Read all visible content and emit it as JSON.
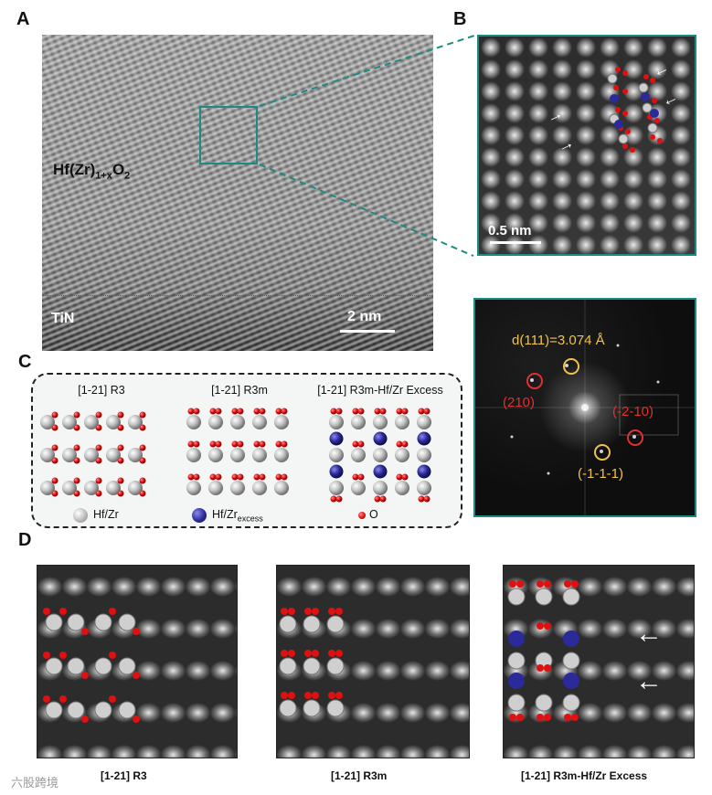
{
  "panels": {
    "a": "A",
    "b": "B",
    "c": "C",
    "d": "D"
  },
  "panel_a": {
    "material_prefix": "Hf(Zr)",
    "material_sub1": "1+x",
    "material_mid": "O",
    "material_sub2": "2",
    "substrate": "TiN",
    "scale": "2 nm"
  },
  "panel_b": {
    "scale": "0.5 nm"
  },
  "fft": {
    "d_spacing": "d(111)=3.074 Å",
    "spot_210": "(210)",
    "spot_m2m10": "(-2-10)",
    "spot_m1m1m1": "(-1-1-1)"
  },
  "panel_c": {
    "structures": [
      "[1-21] R3",
      "[1-21] R3m",
      "[1-21] R3m-Hf/Zr Excess"
    ],
    "legend": {
      "hf": "Hf/Zr",
      "excess_main": "Hf/Zr",
      "excess_sub": "excess",
      "o": "O"
    }
  },
  "panel_d": {
    "captions": [
      "[1-21] R3",
      "[1-21] R3m",
      "[1-21] R3m-Hf/Zr Excess"
    ]
  },
  "watermark": "六股跨境",
  "colors": {
    "accent_teal": "#1e8a84",
    "fft_yellow": "#f0c24a",
    "fft_red": "#e03030",
    "oxygen": "#e01010",
    "excess": "#2a2a9a"
  }
}
